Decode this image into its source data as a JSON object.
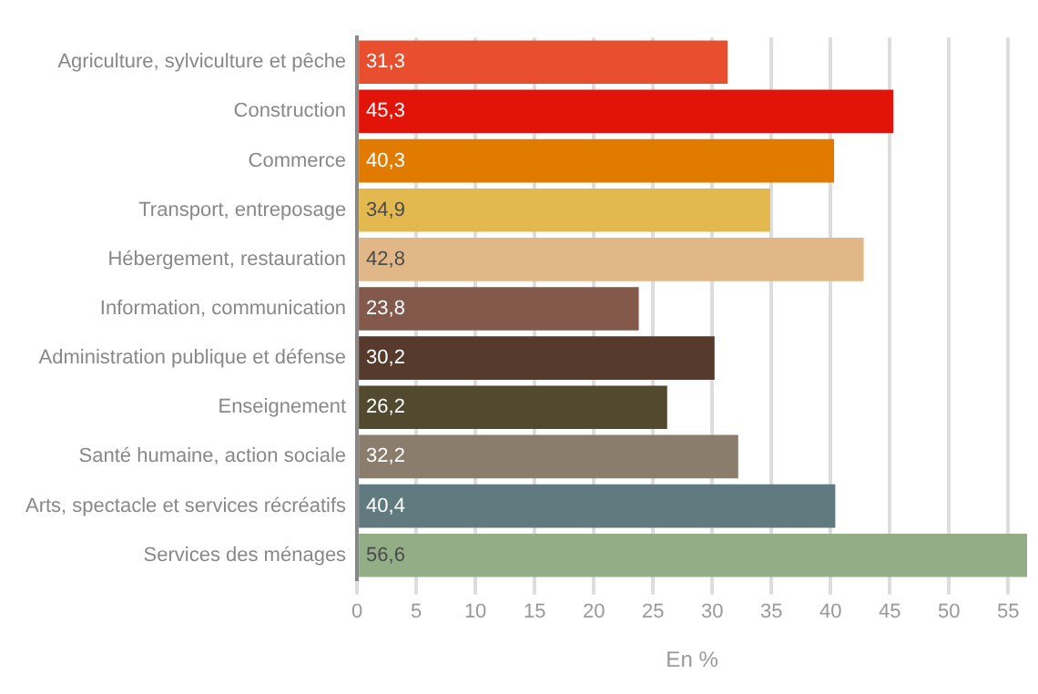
{
  "chart_data": {
    "type": "bar",
    "orientation": "horizontal",
    "xlabel": "En %",
    "categories": [
      "Agriculture, sylviculture et pêche",
      "Construction",
      "Commerce",
      "Transport, entreposage",
      "Hébergement, restauration",
      "Information, communication",
      "Administration publique et défense",
      "Enseignement",
      "Santé humaine, action sociale",
      "Arts, spectacle et services récréatifs",
      "Services des ménages"
    ],
    "values": [
      31.3,
      45.3,
      40.3,
      34.9,
      42.8,
      23.8,
      30.2,
      26.2,
      32.2,
      40.4,
      56.6
    ],
    "value_labels": [
      "31,3",
      "45,3",
      "40,3",
      "34,9",
      "42,8",
      "23,8",
      "30,2",
      "26,2",
      "32,2",
      "40,4",
      "56,6"
    ],
    "colors": [
      "#e84f2e",
      "#e2140a",
      "#e17b00",
      "#e3b94f",
      "#e2b787",
      "#82594a",
      "#563a2c",
      "#514a2f",
      "#8a7d6c",
      "#607a80",
      "#93ae87"
    ],
    "xlim": [
      0,
      56.6
    ],
    "xticks": [
      0,
      5,
      10,
      15,
      20,
      25,
      30,
      35,
      40,
      45,
      50,
      55
    ],
    "grid": "x"
  }
}
